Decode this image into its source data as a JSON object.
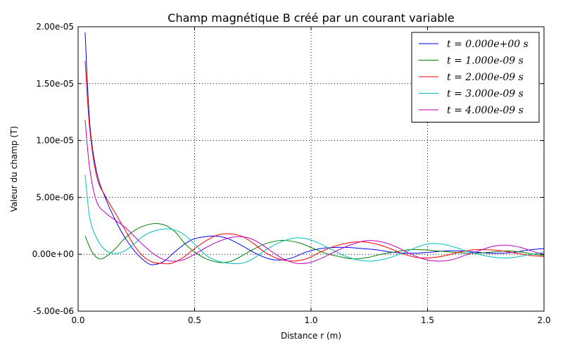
{
  "chart_data": {
    "type": "line",
    "title": "Champ magnétique B créé par un courant variable",
    "xlabel": "Distance r (m)",
    "ylabel": "Valeur du champ (T)",
    "xlim": [
      0.0,
      2.0
    ],
    "ylim": [
      -5e-06,
      2e-05
    ],
    "xticks": [
      0.0,
      0.5,
      1.0,
      1.5,
      2.0
    ],
    "xtick_labels": [
      "0.0",
      "0.5",
      "1.0",
      "1.5",
      "2.0"
    ],
    "yticks": [
      -5e-06,
      0.0,
      5e-06,
      1e-05,
      1.5e-05,
      2e-05
    ],
    "ytick_labels": [
      "-5.00e-06",
      "0.00e+00",
      "5.00e-06",
      "1.00e-05",
      "1.50e-05",
      "2.00e-05"
    ],
    "grid": true,
    "legend_position": "top-right",
    "series": [
      {
        "name": "t = 0.000e+00 s",
        "color": "#0000ff",
        "x": [
          0.03,
          0.05,
          0.08,
          0.12,
          0.16,
          0.2,
          0.25,
          0.3,
          0.33,
          0.37,
          0.42,
          0.48,
          0.53,
          0.59,
          0.64,
          0.7,
          0.76,
          0.82,
          0.87,
          0.92,
          0.98,
          1.04,
          1.1,
          1.16,
          1.22,
          1.28,
          1.34,
          1.4,
          1.46,
          1.52,
          1.58,
          1.64,
          1.7,
          1.76,
          1.82,
          1.88,
          1.94,
          2.0
        ],
        "y": [
          1.95e-05,
          1.15e-05,
          7.2e-06,
          4.8e-06,
          3e-06,
          1.5e-06,
          1e-07,
          -8e-07,
          -9e-07,
          -6e-07,
          3e-07,
          1.2e-06,
          1.5e-06,
          1.6e-06,
          1.4e-06,
          8e-07,
          1e-07,
          -4e-07,
          -5e-07,
          -3e-07,
          2e-07,
          5e-07,
          6e-07,
          6e-07,
          5e-07,
          4e-07,
          2e-07,
          1e-07,
          1e-07,
          2e-07,
          3e-07,
          3e-07,
          2e-07,
          1e-07,
          1e-07,
          2e-07,
          4e-07,
          5e-07
        ]
      },
      {
        "name": "t = 1.000e-09 s",
        "color": "#008000",
        "x": [
          0.03,
          0.06,
          0.09,
          0.12,
          0.16,
          0.2,
          0.25,
          0.3,
          0.34,
          0.38,
          0.42,
          0.46,
          0.5,
          0.55,
          0.6,
          0.64,
          0.68,
          0.74,
          0.8,
          0.86,
          0.9,
          0.95,
          1.0,
          1.06,
          1.12,
          1.18,
          1.24,
          1.3,
          1.36,
          1.42,
          1.48,
          1.54,
          1.6,
          1.66,
          1.72,
          1.78,
          1.84,
          1.9,
          1.96,
          2.0
        ],
        "y": [
          1.6e-06,
          2e-07,
          -4e-07,
          -2e-07,
          5e-07,
          1.4e-06,
          2.2e-06,
          2.6e-06,
          2.7e-06,
          2.5e-06,
          1.9e-06,
          9e-07,
          2e-07,
          -4e-07,
          -7e-07,
          -7e-07,
          -4e-07,
          3e-07,
          9e-07,
          1.2e-06,
          1.2e-06,
          1e-06,
          6e-07,
          1e-07,
          -2e-07,
          -4e-07,
          -3e-07,
          0.0,
          2e-07,
          4e-07,
          4e-07,
          3e-07,
          2e-07,
          1e-07,
          1e-07,
          2e-07,
          3e-07,
          2e-07,
          0.0,
          -1e-07
        ]
      },
      {
        "name": "t = 2.000e-09 s",
        "color": "#ff0000",
        "x": [
          0.03,
          0.05,
          0.08,
          0.12,
          0.16,
          0.2,
          0.24,
          0.28,
          0.32,
          0.36,
          0.4,
          0.45,
          0.5,
          0.55,
          0.6,
          0.65,
          0.7,
          0.75,
          0.8,
          0.86,
          0.92,
          0.98,
          1.04,
          1.1,
          1.16,
          1.22,
          1.28,
          1.34,
          1.4,
          1.46,
          1.52,
          1.58,
          1.64,
          1.7,
          1.76,
          1.82,
          1.88,
          1.94,
          2.0
        ],
        "y": [
          1.7e-05,
          1.1e-05,
          6.8e-06,
          5e-06,
          3.6e-06,
          2.2e-06,
          8e-07,
          -2e-07,
          -7e-07,
          -8e-07,
          -8e-07,
          -3e-07,
          5e-07,
          1.2e-06,
          1.7e-06,
          1.8e-06,
          1.6e-06,
          1e-06,
          2e-07,
          -4e-07,
          -6e-07,
          -4e-07,
          2e-07,
          7e-07,
          1e-06,
          1.1e-06,
          9e-07,
          5e-07,
          0.0,
          -3e-07,
          -3e-07,
          -1e-07,
          2e-07,
          4e-07,
          4e-07,
          3e-07,
          1e-07,
          -1e-07,
          -2e-07
        ]
      },
      {
        "name": "t = 3.000e-09 s",
        "color": "#00bfbf",
        "x": [
          0.03,
          0.05,
          0.08,
          0.11,
          0.14,
          0.17,
          0.2,
          0.24,
          0.28,
          0.32,
          0.36,
          0.4,
          0.45,
          0.5,
          0.55,
          0.6,
          0.65,
          0.7,
          0.75,
          0.8,
          0.86,
          0.92,
          0.97,
          1.02,
          1.08,
          1.14,
          1.2,
          1.26,
          1.32,
          1.38,
          1.44,
          1.5,
          1.56,
          1.62,
          1.68,
          1.74,
          1.8,
          1.86,
          1.92,
          1.98,
          2.0
        ],
        "y": [
          7e-06,
          3.2e-06,
          1.4e-06,
          5e-07,
          1e-07,
          1e-07,
          3e-07,
          9e-07,
          1.6e-06,
          2e-06,
          2.2e-06,
          2.2e-06,
          1.8e-06,
          9e-07,
          -1e-07,
          -6e-07,
          -8e-07,
          -8e-07,
          -4e-07,
          3e-07,
          1e-06,
          1.4e-06,
          1.4e-06,
          1.1e-06,
          5e-07,
          -1e-07,
          -5e-07,
          -6e-07,
          -4e-07,
          0.0,
          5e-07,
          9e-07,
          9e-07,
          6e-07,
          2e-07,
          -1e-07,
          -3e-07,
          -3e-07,
          -1e-07,
          1e-07,
          2e-07
        ]
      },
      {
        "name": "t = 4.000e-09 s",
        "color": "#bf00bf",
        "x": [
          0.03,
          0.05,
          0.08,
          0.12,
          0.16,
          0.2,
          0.24,
          0.28,
          0.32,
          0.36,
          0.4,
          0.45,
          0.5,
          0.55,
          0.6,
          0.66,
          0.72,
          0.77,
          0.82,
          0.88,
          0.94,
          1.0,
          1.06,
          1.12,
          1.18,
          1.24,
          1.3,
          1.36,
          1.42,
          1.48,
          1.54,
          1.6,
          1.66,
          1.72,
          1.78,
          1.84,
          1.9,
          1.96,
          2.0
        ],
        "y": [
          1.18e-05,
          7.5e-06,
          4.6e-06,
          3.6e-06,
          3e-06,
          2.4e-06,
          1.6e-06,
          8e-07,
          1e-07,
          -4e-07,
          -6e-07,
          -5e-07,
          0.0,
          6e-07,
          1.1e-06,
          1.5e-06,
          1.5e-06,
          1.1e-06,
          4e-07,
          -4e-07,
          -8e-07,
          -7e-07,
          -2e-07,
          4e-07,
          9e-07,
          1.2e-06,
          1.1e-06,
          7e-07,
          1e-07,
          -4e-07,
          -6e-07,
          -5e-07,
          -1e-07,
          3e-07,
          7e-07,
          8e-07,
          6e-07,
          2e-07,
          0.0
        ]
      }
    ]
  }
}
